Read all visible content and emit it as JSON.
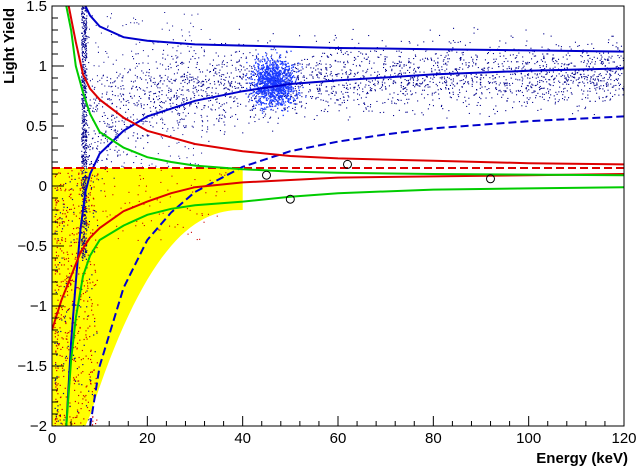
{
  "chart_data": {
    "type": "scatter",
    "xlabel": "Energy (keV)",
    "ylabel": "Light Yield",
    "xlim": [
      0,
      120
    ],
    "ylim": [
      -2,
      1.5
    ],
    "x_ticks": [
      0,
      20,
      40,
      60,
      80,
      100,
      120
    ],
    "x_tick_labels": [
      "0",
      "20",
      "40",
      "60",
      "80",
      "100",
      "120"
    ],
    "y_ticks": [
      -2,
      -1.5,
      -1,
      -0.5,
      0,
      0.5,
      1,
      1.5
    ],
    "y_tick_labels": [
      "−2",
      "−1.5",
      "−1",
      "−0.5",
      "0",
      "0.5",
      "1",
      "1.5"
    ],
    "grid": false,
    "colors": {
      "events": "#00008b",
      "nuclear_recoil_events": "#cc0000",
      "electron_band": "#0000cc",
      "red_band": "#dd0000",
      "green_band": "#00cc00",
      "acceptance_region": "#ffff00",
      "candidates": "#000000"
    },
    "acceptance_region": {
      "x_range": [
        0,
        40
      ],
      "upper_edge_y": 0.15,
      "lower_edge_at_40keV": -0.2
    },
    "threshold_energy": 6.5,
    "threshold_light_yield": 0.15,
    "peak_cluster": {
      "energy": 48,
      "light_yield": 0.85
    },
    "candidate_events": [
      {
        "x": 45,
        "y": 0.09
      },
      {
        "x": 50,
        "y": -0.11
      },
      {
        "x": 62,
        "y": 0.18
      },
      {
        "x": 92,
        "y": 0.06
      }
    ],
    "curves": [
      {
        "name": "",
        "color": "#0000cc",
        "style": "solid",
        "points": [
          [
            7,
            1.5
          ],
          [
            8,
            1.42
          ],
          [
            10,
            1.33
          ],
          [
            15,
            1.24
          ],
          [
            20,
            1.21
          ],
          [
            30,
            1.18
          ],
          [
            40,
            1.17
          ],
          [
            60,
            1.15
          ],
          [
            80,
            1.14
          ],
          [
            100,
            1.13
          ],
          [
            120,
            1.12
          ]
        ]
      },
      {
        "name": "",
        "color": "#0000cc",
        "style": "solid",
        "points": [
          [
            3,
            -2.0
          ],
          [
            4,
            -1.3
          ],
          [
            5,
            -0.8
          ],
          [
            6,
            -0.35
          ],
          [
            7,
            -0.05
          ],
          [
            8,
            0.1
          ],
          [
            10,
            0.27
          ],
          [
            15,
            0.46
          ],
          [
            20,
            0.58
          ],
          [
            30,
            0.71
          ],
          [
            40,
            0.79
          ],
          [
            50,
            0.85
          ],
          [
            60,
            0.88
          ],
          [
            80,
            0.93
          ],
          [
            100,
            0.96
          ],
          [
            120,
            0.98
          ]
        ]
      },
      {
        "name": "",
        "color": "#0000cc",
        "style": "dashed",
        "points": [
          [
            8,
            -2.0
          ],
          [
            10,
            -1.5
          ],
          [
            15,
            -0.85
          ],
          [
            20,
            -0.45
          ],
          [
            25,
            -0.22
          ],
          [
            30,
            -0.05
          ],
          [
            40,
            0.16
          ],
          [
            50,
            0.29
          ],
          [
            60,
            0.37
          ],
          [
            70,
            0.43
          ],
          [
            80,
            0.48
          ],
          [
            90,
            0.51
          ],
          [
            100,
            0.54
          ],
          [
            110,
            0.56
          ],
          [
            120,
            0.58
          ]
        ]
      },
      {
        "name": "",
        "color": "#dd0000",
        "style": "dashed",
        "points": [
          [
            0,
            0.15
          ],
          [
            120,
            0.15
          ]
        ]
      },
      {
        "name": "",
        "color": "#dd0000",
        "style": "solid",
        "points": [
          [
            3.5,
            1.5
          ],
          [
            5,
            1.2
          ],
          [
            6.5,
            0.93
          ],
          [
            8,
            0.81
          ],
          [
            10,
            0.72
          ],
          [
            15,
            0.57
          ],
          [
            20,
            0.46
          ],
          [
            30,
            0.35
          ],
          [
            40,
            0.29
          ],
          [
            50,
            0.25
          ],
          [
            60,
            0.23
          ],
          [
            80,
            0.21
          ],
          [
            100,
            0.19
          ],
          [
            120,
            0.18
          ]
        ]
      },
      {
        "name": "",
        "color": "#dd0000",
        "style": "solid",
        "points": [
          [
            0,
            -1.2
          ],
          [
            2,
            -0.95
          ],
          [
            4,
            -0.75
          ],
          [
            6,
            -0.55
          ],
          [
            8,
            -0.43
          ],
          [
            10,
            -0.35
          ],
          [
            15,
            -0.21
          ],
          [
            20,
            -0.13
          ],
          [
            25,
            -0.06
          ],
          [
            30,
            -0.01
          ],
          [
            40,
            0.03
          ],
          [
            50,
            0.05
          ],
          [
            60,
            0.07
          ],
          [
            80,
            0.08
          ],
          [
            100,
            0.09
          ],
          [
            120,
            0.1
          ]
        ]
      },
      {
        "name": "",
        "color": "#00cc00",
        "style": "solid",
        "points": [
          [
            3,
            1.5
          ],
          [
            4,
            1.3
          ],
          [
            5,
            1.0
          ],
          [
            6.5,
            0.78
          ],
          [
            8,
            0.6
          ],
          [
            10,
            0.45
          ],
          [
            15,
            0.32
          ],
          [
            20,
            0.24
          ],
          [
            25,
            0.2
          ],
          [
            30,
            0.17
          ],
          [
            40,
            0.14
          ],
          [
            50,
            0.12
          ],
          [
            60,
            0.11
          ],
          [
            80,
            0.1
          ],
          [
            100,
            0.095
          ],
          [
            120,
            0.09
          ]
        ]
      },
      {
        "name": "",
        "color": "#00cc00",
        "style": "solid",
        "points": [
          [
            3,
            -2.0
          ],
          [
            4,
            -1.45
          ],
          [
            5,
            -1.1
          ],
          [
            6.5,
            -0.75
          ],
          [
            8,
            -0.58
          ],
          [
            10,
            -0.45
          ],
          [
            15,
            -0.33
          ],
          [
            20,
            -0.24
          ],
          [
            25,
            -0.19
          ],
          [
            30,
            -0.16
          ],
          [
            40,
            -0.13
          ],
          [
            50,
            -0.09
          ],
          [
            60,
            -0.06
          ],
          [
            80,
            -0.03
          ],
          [
            100,
            -0.02
          ],
          [
            120,
            -0.01
          ]
        ]
      }
    ]
  }
}
